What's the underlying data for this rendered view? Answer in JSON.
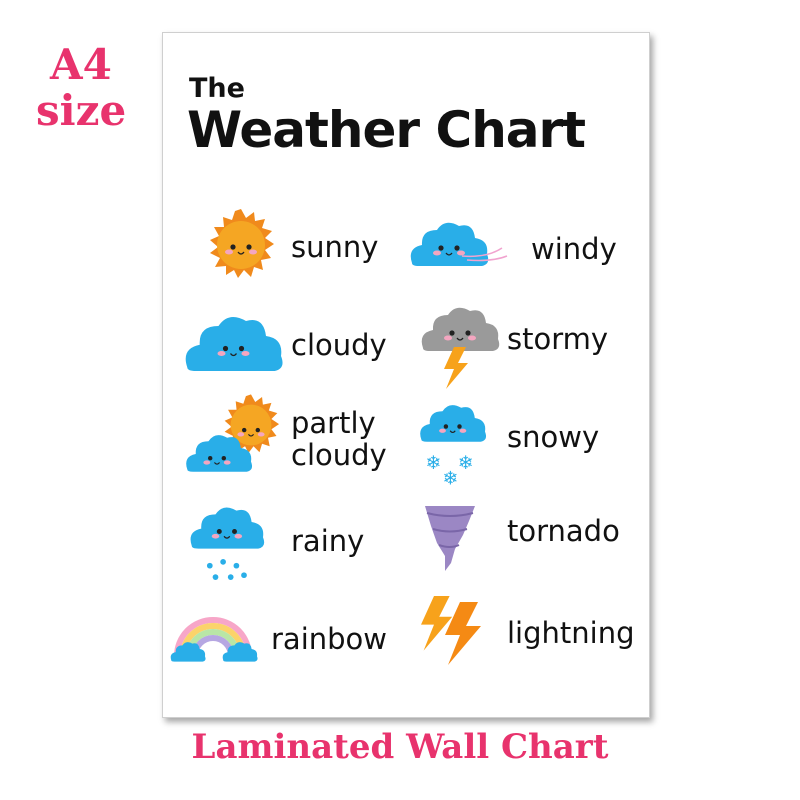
{
  "promo": {
    "top_line": "A4",
    "second_line": "size",
    "footer": "Laminated Wall Chart",
    "color": "#e8336d"
  },
  "poster": {
    "title_small": "The",
    "title_large": "Weather Chart",
    "items": [
      {
        "label": "sunny",
        "icon": "sun-icon"
      },
      {
        "label": "windy",
        "icon": "windy-cloud-icon"
      },
      {
        "label": "cloudy",
        "icon": "cloud-icon"
      },
      {
        "label": "stormy",
        "icon": "storm-cloud-icon"
      },
      {
        "label_line1": "partly",
        "label_line2": "cloudy",
        "icon": "partly-cloudy-icon"
      },
      {
        "label": "snowy",
        "icon": "snow-cloud-icon"
      },
      {
        "label": "rainy",
        "icon": "rain-cloud-icon"
      },
      {
        "label": "tornado",
        "icon": "tornado-icon"
      },
      {
        "label": "rainbow",
        "icon": "rainbow-icon"
      },
      {
        "label": "lightning",
        "icon": "lightning-icon"
      }
    ]
  },
  "colors": {
    "cloud": "#29aee8",
    "sun": "#f5a623",
    "storm": "#9a9a9a",
    "bolt": "#f7a21b",
    "tornado": "#9b87c4"
  }
}
